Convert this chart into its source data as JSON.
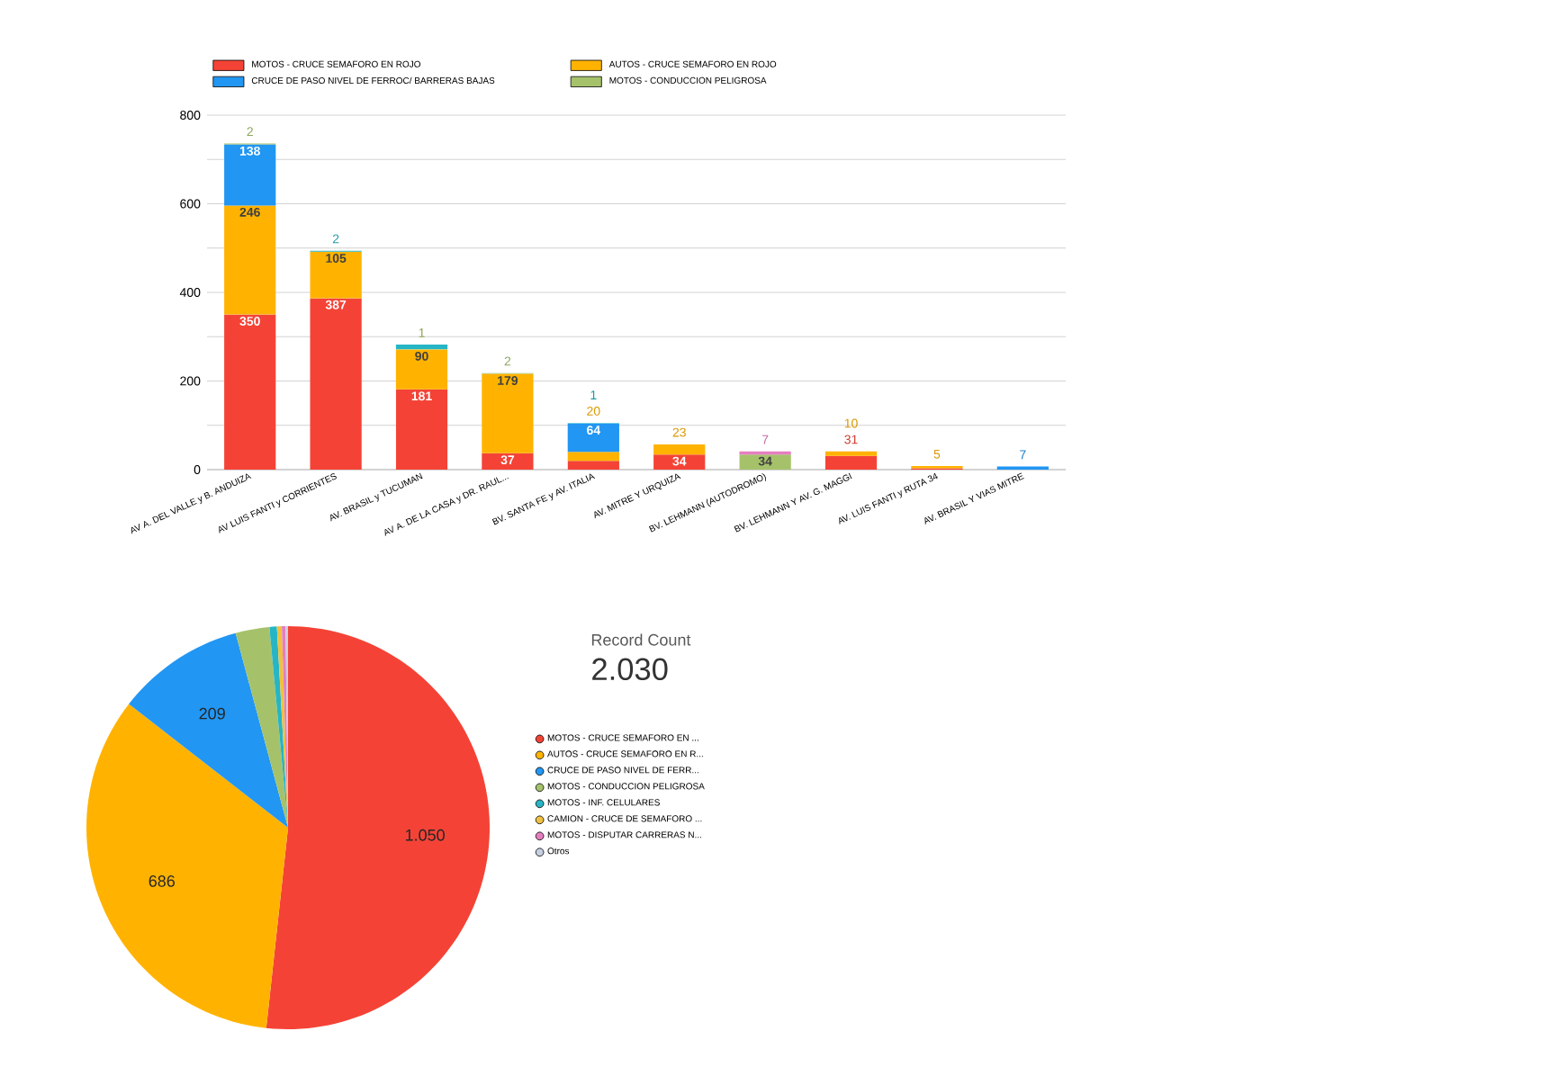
{
  "chart_data": [
    {
      "type": "bar",
      "stacked": true,
      "grid": "y",
      "legend": "top",
      "categories": [
        "AV A. DEL VALLE y B. ANDUIZA",
        "AV LUIS FANTI y CORRIENTES",
        "AV. BRASIL y TUCUMAN",
        "AV A. DE LA CASA y DR. RAUL...",
        "BV. SANTA FE y AV. ITALIA",
        "AV. MITRE Y URQUIZA",
        "BV. LEHMANN (AUTODROMO)",
        "BV. LEHMANN Y AV. G. MAGGI",
        "AV. LUIS FANTI y RUTA 34",
        "AV. BRASIL Y VIAS MITRE"
      ],
      "ylim": [
        0,
        800
      ],
      "yticks": [
        0,
        {
          "value": 100,
          "label": null
        },
        200,
        {
          "value": 300,
          "label": null
        },
        400,
        {
          "value": 500,
          "label": null
        },
        600,
        {
          "value": 700,
          "label": null
        },
        800
      ],
      "series": [
        {
          "name": "MOTOS - CRUCE SEMAFORO EN ROJO",
          "color": "#f44336",
          "values": [
            350,
            387,
            181,
            37,
            20,
            34,
            null,
            31,
            3,
            null
          ],
          "value_labels": [
            "350",
            "387",
            "181",
            "37",
            null,
            "34",
            null,
            "31",
            null,
            null
          ]
        },
        {
          "name": "AUTOS - CRUCE SEMAFORO EN ROJO",
          "color": "#ffb300",
          "values": [
            246,
            105,
            90,
            179,
            20,
            23,
            null,
            10,
            5,
            null
          ],
          "value_labels": [
            "246",
            "105",
            "90",
            "179",
            "20",
            "23",
            null,
            "10",
            "5",
            null
          ]
        },
        {
          "name": "CRUCE DE PASO NIVEL DE FERROC/ BARRERAS BAJAS",
          "color": "#2196f3",
          "values": [
            138,
            null,
            null,
            null,
            64,
            null,
            null,
            null,
            null,
            7
          ],
          "value_labels": [
            "138",
            null,
            null,
            null,
            "64",
            null,
            null,
            null,
            null,
            "7"
          ]
        },
        {
          "name": "MOTOS - CONDUCCION PELIGROSA",
          "color": "#a5c26b",
          "values": [
            2,
            null,
            1,
            2,
            null,
            null,
            34,
            null,
            null,
            null
          ],
          "value_labels": [
            "2",
            null,
            "1",
            "2",
            null,
            null,
            "34",
            null,
            null,
            null
          ]
        },
        {
          "color": "#26b5c5",
          "values": [
            null,
            2,
            10,
            null,
            1,
            null,
            null,
            null,
            null,
            null
          ],
          "value_labels": [
            null,
            "2",
            null,
            null,
            "1",
            null,
            null,
            null,
            null,
            null
          ]
        },
        {
          "color": "#e57ec0",
          "values": [
            null,
            null,
            null,
            null,
            null,
            null,
            7,
            null,
            null,
            null
          ],
          "value_labels": [
            null,
            null,
            null,
            null,
            null,
            null,
            "7",
            null,
            null,
            null
          ]
        }
      ]
    },
    {
      "type": "pie",
      "legend": "right",
      "categories": [
        "MOTOS - CRUCE SEMAFORO EN ...",
        "AUTOS - CRUCE SEMAFORO EN R...",
        "CRUCE DE PASO NIVEL DE FERR...",
        "MOTOS - CONDUCCION PELIGROSA",
        "MOTOS - INF. CELULARES",
        "CAMION - CRUCE DE SEMAFORO ...",
        "MOTOS - DISPUTAR CARRERAS N...",
        "Otros"
      ],
      "values": [
        1050,
        686,
        209,
        55,
        12,
        8,
        6,
        4
      ],
      "colors": [
        "#f44336",
        "#ffb300",
        "#2196f3",
        "#a5c26b",
        "#26b5c5",
        "#f0c040",
        "#e57ec0",
        "#c5cfe0"
      ],
      "value_labels": [
        "1.050",
        "686",
        "209",
        null,
        null,
        null,
        null,
        null
      ]
    },
    {
      "type": "other",
      "title": "Record Count",
      "annotations": [
        "2.030"
      ]
    }
  ]
}
